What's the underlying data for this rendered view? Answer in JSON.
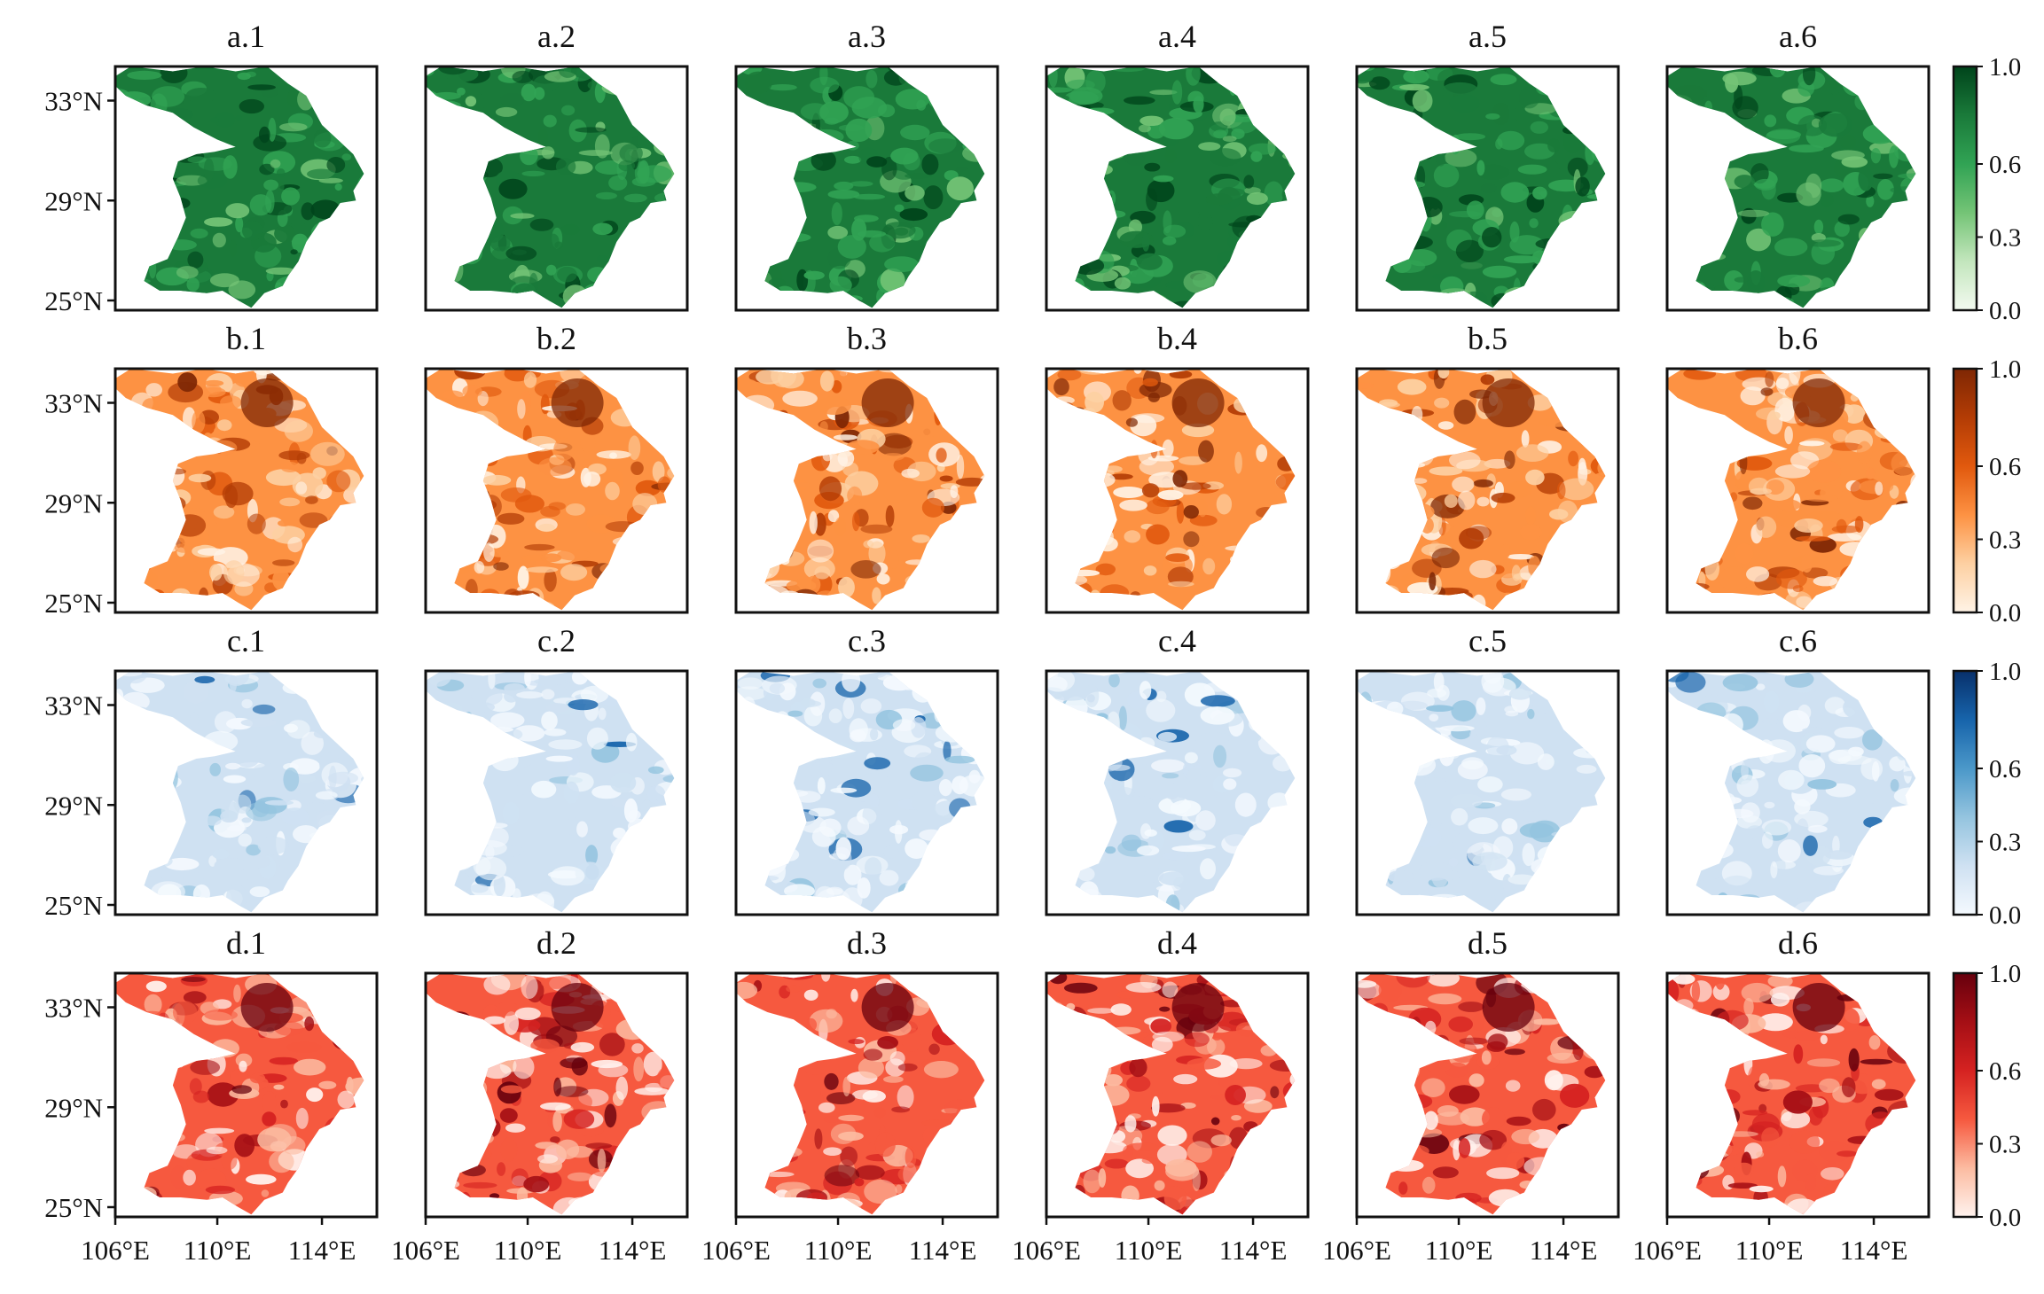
{
  "figure": {
    "rows": [
      {
        "key": "a",
        "panels": [
          "a.1",
          "a.2",
          "a.3",
          "a.4",
          "a.5",
          "a.6"
        ],
        "colormap": "Greens",
        "colors": [
          "#f3faf0",
          "#c3e6bd",
          "#74c476",
          "#31a354",
          "#1a7a3a",
          "#00441b"
        ]
      },
      {
        "key": "b",
        "panels": [
          "b.1",
          "b.2",
          "b.3",
          "b.4",
          "b.5",
          "b.6"
        ],
        "colormap": "Oranges",
        "colors": [
          "#fff3e6",
          "#fdd0a2",
          "#fd9243",
          "#e1590e",
          "#b33c05",
          "#7f2704"
        ]
      },
      {
        "key": "c",
        "panels": [
          "c.1",
          "c.2",
          "c.3",
          "c.4",
          "c.5",
          "c.6"
        ],
        "colormap": "Blues",
        "colors": [
          "#f4f9fe",
          "#cfe1f2",
          "#94c4df",
          "#4b98c9",
          "#1764ab",
          "#08306b"
        ]
      },
      {
        "key": "d",
        "panels": [
          "d.1",
          "d.2",
          "d.3",
          "d.4",
          "d.5",
          "d.6"
        ],
        "colormap": "Reds",
        "colors": [
          "#fff2ee",
          "#fcbba1",
          "#f6593f",
          "#d52221",
          "#a50f15",
          "#67000d"
        ]
      }
    ],
    "y_ticks": [
      "33°N",
      "29°N",
      "25°N"
    ],
    "x_ticks": [
      "106°E",
      "110°E",
      "114°E"
    ],
    "colorbar_ticks": [
      "1.0",
      "0.6",
      "0.3",
      "0.0"
    ],
    "colorbar_range": [
      0,
      1
    ]
  }
}
